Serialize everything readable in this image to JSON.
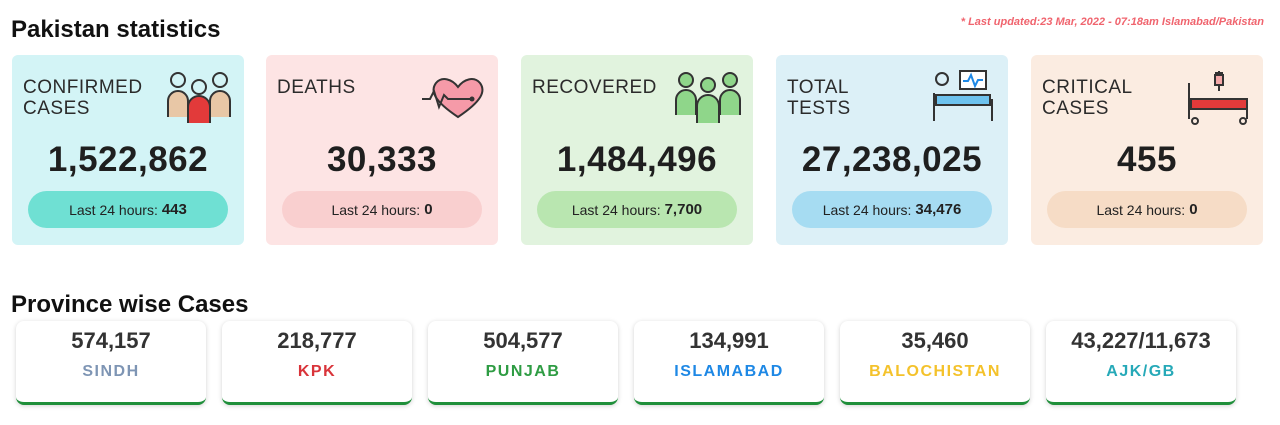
{
  "header": {
    "title": "Pakistan statistics",
    "last_updated": "* Last updated:23 Mar, 2022 - 07:18am Islamabad/Pakistan"
  },
  "cards": [
    {
      "label": "CONFIRMED CASES",
      "value": "1,522,862",
      "last24_label": "Last 24 hours:",
      "last24_value": "443",
      "icon": "group-of-people-icon"
    },
    {
      "label": "DEATHS",
      "value": "30,333",
      "last24_label": "Last 24 hours:",
      "last24_value": "0",
      "icon": "heartbeat-icon"
    },
    {
      "label": "RECOVERED",
      "value": "1,484,496",
      "last24_label": "Last 24 hours:",
      "last24_value": "7,700",
      "icon": "recovered-people-icon"
    },
    {
      "label": "TOTAL TESTS",
      "value": "27,238,025",
      "last24_label": "Last 24 hours:",
      "last24_value": "34,476",
      "icon": "patient-bed-monitor-icon"
    },
    {
      "label": "CRITICAL CASES",
      "value": "455",
      "last24_label": "Last 24 hours:",
      "last24_value": "0",
      "icon": "hospital-bed-iv-icon"
    }
  ],
  "province_section": {
    "title": "Province wise Cases",
    "provinces": [
      {
        "value": "574,157",
        "name": "SINDH",
        "color": "#7e95b4"
      },
      {
        "value": "218,777",
        "name": "KPK",
        "color": "#d9343a"
      },
      {
        "value": "504,577",
        "name": "PUNJAB",
        "color": "#2e9c43"
      },
      {
        "value": "134,991",
        "name": "ISLAMABAD",
        "color": "#1e88e5"
      },
      {
        "value": "35,460",
        "name": "BALOCHISTAN",
        "color": "#f4c22b"
      },
      {
        "value": "43,227/11,673",
        "name": "AJK/GB",
        "color": "#26a9b8"
      }
    ]
  }
}
